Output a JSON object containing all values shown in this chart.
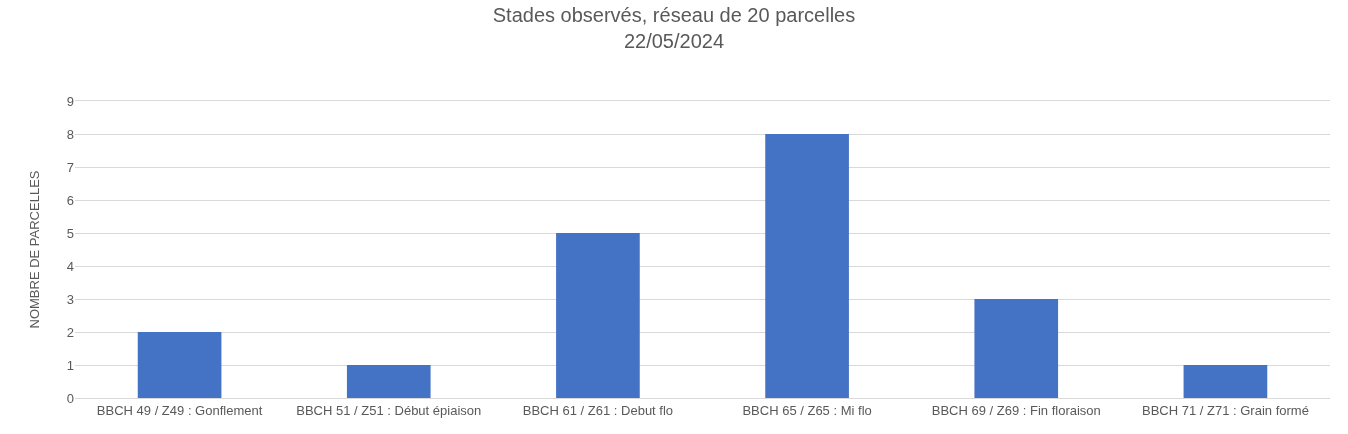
{
  "chart_data": {
    "type": "bar",
    "title": "Stades observés, réseau de 20 parcelles\n22/05/2024",
    "ylabel": "NOMBRE DE PARCELLES",
    "categories": [
      "BBCH 49 / Z49 : Gonflement",
      "BBCH 51 / Z51 : Début épiaison",
      "BBCH 61 / Z61 : Debut flo",
      "BBCH 65 / Z65 : Mi flo",
      "BBCH 69 / Z69 : Fin floraison",
      "BBCH 71 / Z71 : Grain formé"
    ],
    "values": [
      2,
      1,
      5,
      8,
      3,
      1
    ],
    "color": "#4472c4",
    "ylim": [
      0,
      9
    ],
    "yticks": [
      0,
      1,
      2,
      3,
      4,
      5,
      6,
      7,
      8,
      9
    ],
    "grid": "y"
  }
}
